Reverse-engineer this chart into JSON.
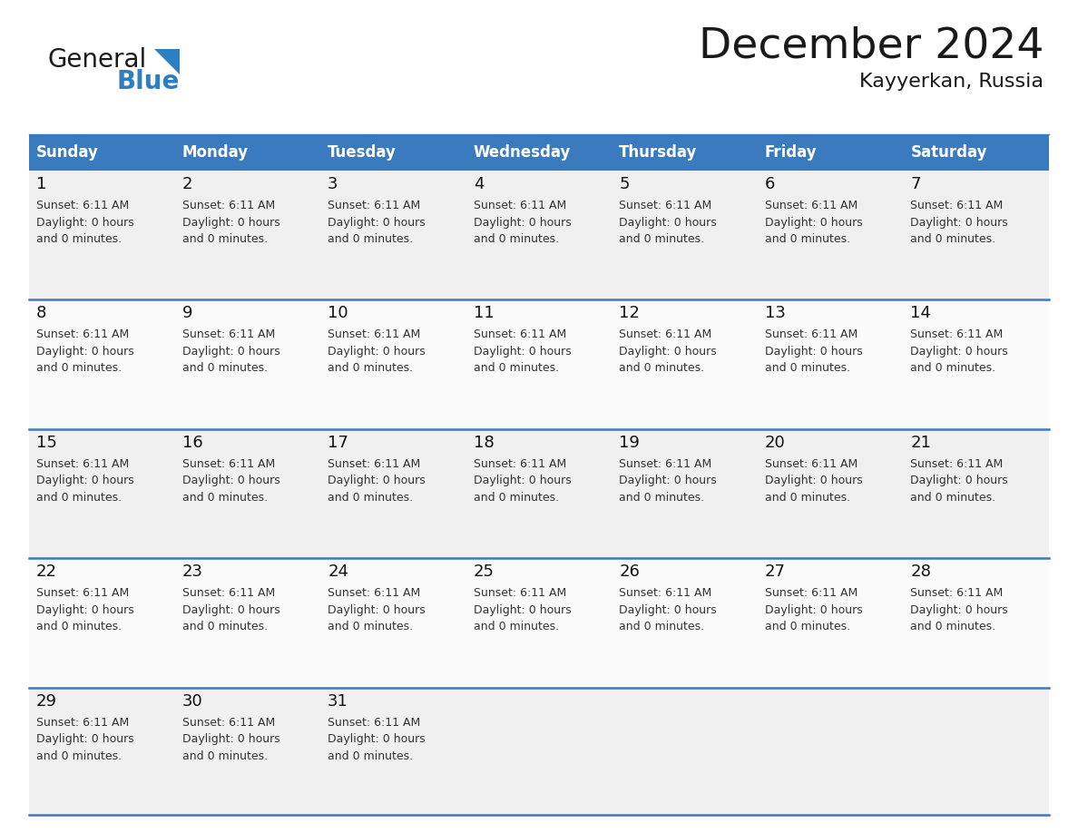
{
  "title": "December 2024",
  "subtitle": "Kayyerkan, Russia",
  "days_of_week": [
    "Sunday",
    "Monday",
    "Tuesday",
    "Wednesday",
    "Thursday",
    "Friday",
    "Saturday"
  ],
  "header_bg": "#3a7abf",
  "header_text": "#ffffff",
  "row_bg_odd": "#f0f0f0",
  "row_bg_even": "#fafafa",
  "divider_color": "#3a7abf",
  "text_color": "#1a1a1a",
  "cell_text_color": "#333333",
  "day_number_color": "#111111",
  "calendar": [
    [
      1,
      2,
      3,
      4,
      5,
      6,
      7
    ],
    [
      8,
      9,
      10,
      11,
      12,
      13,
      14
    ],
    [
      15,
      16,
      17,
      18,
      19,
      20,
      21
    ],
    [
      22,
      23,
      24,
      25,
      26,
      27,
      28
    ],
    [
      29,
      30,
      31,
      0,
      0,
      0,
      0
    ]
  ],
  "cell_info": "Sunset: 6:11 AM\nDaylight: 0 hours\nand 0 minutes.",
  "logo_color_general": "#1a1a1a",
  "logo_color_blue": "#2e7fc2",
  "logo_triangle_color": "#2e7fc2",
  "header_fontsize": 12,
  "day_num_fontsize": 13,
  "cell_fontsize": 9,
  "title_fontsize": 34,
  "subtitle_fontsize": 16
}
